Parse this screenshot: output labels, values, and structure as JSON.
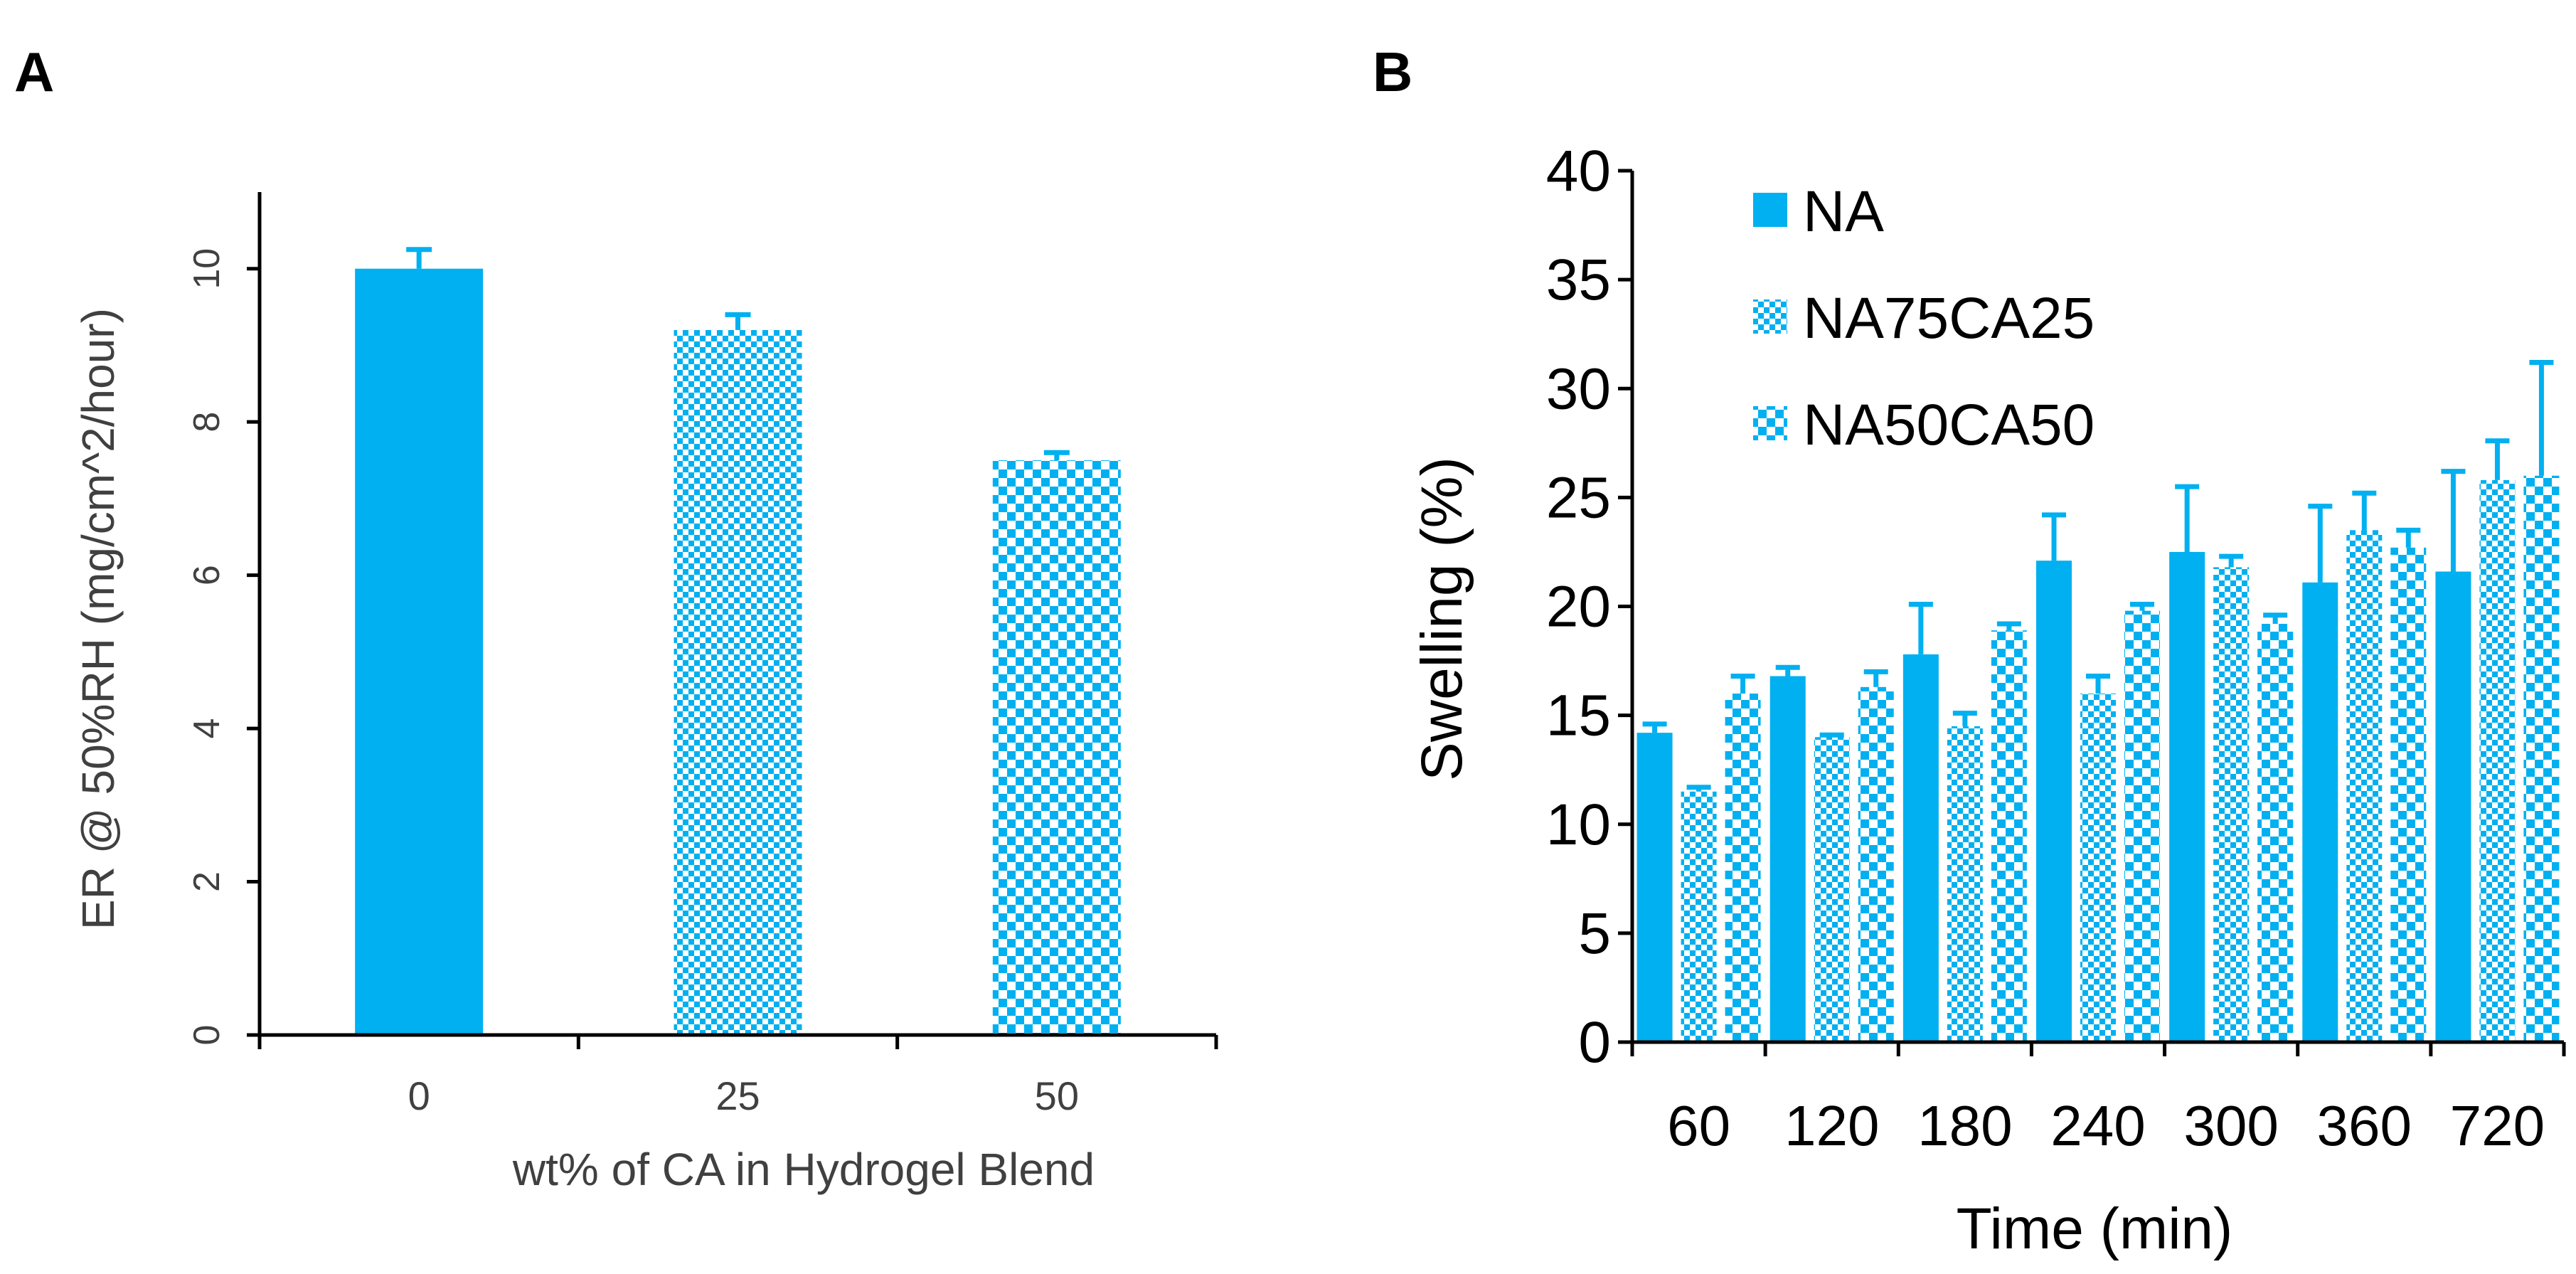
{
  "colors": {
    "bar": "#00B0F0",
    "axis": "#000000",
    "text": "#404040"
  },
  "chart_data": [
    {
      "panel_label": "A",
      "type": "bar",
      "title": "",
      "xlabel": "wt% of CA in Hydrogel Blend",
      "ylabel": "ER @ 50%RH (mg/cm^2/hour)",
      "categories": [
        "0",
        "25",
        "50"
      ],
      "ylim": [
        0,
        11
      ],
      "yticks": [
        "0",
        "2",
        "4",
        "6",
        "8",
        "10"
      ],
      "grid": false,
      "series": [
        {
          "name": "ER",
          "values": [
            10.0,
            9.2,
            7.5
          ],
          "errors": [
            0.25,
            0.2,
            0.1
          ],
          "patterns": [
            "solid",
            "checker-fine",
            "checker-coarse"
          ]
        }
      ]
    },
    {
      "panel_label": "B",
      "type": "bar",
      "title": "",
      "xlabel": "Time (min)",
      "ylabel": "Swelling (%)",
      "categories": [
        "60",
        "120",
        "180",
        "240",
        "300",
        "360",
        "720"
      ],
      "ylim": [
        0,
        40
      ],
      "yticks": [
        "0",
        "5",
        "10",
        "15",
        "20",
        "25",
        "30",
        "35",
        "40"
      ],
      "grid": false,
      "legend_position": "top-left",
      "series": [
        {
          "name": "NA",
          "pattern": "solid",
          "values": [
            14.2,
            16.8,
            17.8,
            22.1,
            22.5,
            21.1,
            21.6
          ],
          "errors": [
            0.4,
            0.4,
            2.3,
            2.1,
            3.0,
            3.5,
            4.6
          ]
        },
        {
          "name": "NA75CA25",
          "pattern": "checker-fine",
          "values": [
            11.5,
            14.0,
            14.5,
            16.0,
            21.8,
            23.5,
            25.8
          ],
          "errors": [
            0.2,
            0.1,
            0.6,
            0.8,
            0.5,
            1.7,
            1.8
          ]
        },
        {
          "name": "NA50CA50",
          "pattern": "checker-coarse",
          "values": [
            16.0,
            16.3,
            18.9,
            19.8,
            19.2,
            22.7,
            26.0
          ],
          "errors": [
            0.8,
            0.7,
            0.3,
            0.3,
            0.4,
            0.8,
            5.2
          ]
        }
      ]
    }
  ]
}
